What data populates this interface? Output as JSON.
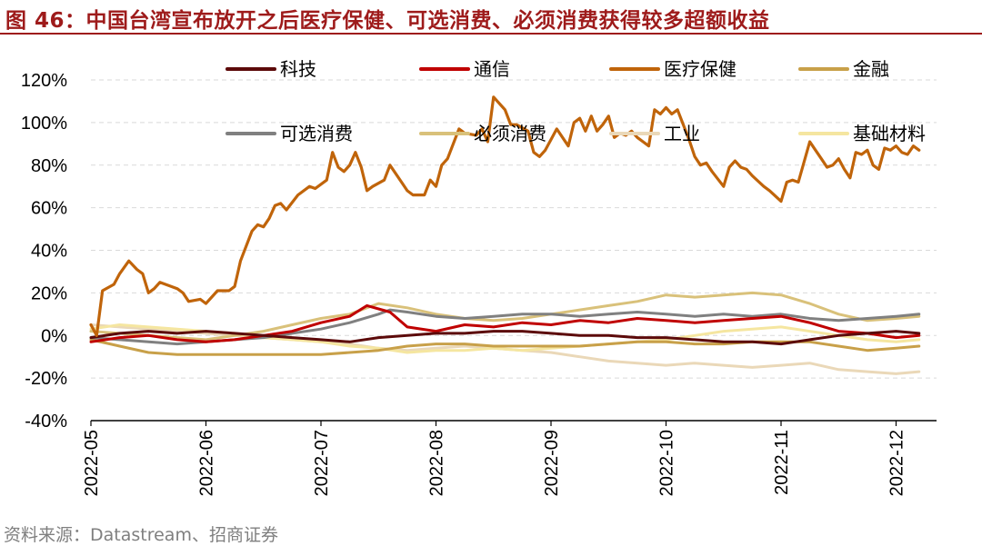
{
  "header": {
    "title": "图 46：中国台湾宣布放开之后医疗保健、可选消费、必须消费获得较多超额收益",
    "source": "资料来源：Datastream、招商证券"
  },
  "chart_data": {
    "type": "line",
    "title": "图 46：中国台湾宣布放开之后医疗保健、可选消费、必须消费获得较多超额收益",
    "xlabel": "",
    "ylabel": "",
    "ylim": [
      -40,
      120
    ],
    "yticks": [
      -40,
      -20,
      0,
      20,
      40,
      60,
      80,
      100,
      120
    ],
    "ytick_labels": [
      "-40%",
      "-20%",
      "0%",
      "20%",
      "40%",
      "60%",
      "80%",
      "100%",
      "120%"
    ],
    "xlim": [
      0,
      7.25
    ],
    "xticks": [
      0,
      1,
      2,
      3,
      4,
      5,
      6,
      7
    ],
    "xtick_labels": [
      "2022-05",
      "2022-06",
      "2022-07",
      "2022-08",
      "2022-09",
      "2022-10",
      "2022-11",
      "2022-12"
    ],
    "grid": "horizontal dashed",
    "legend": "top",
    "series": [
      {
        "name": "科技",
        "color": "#5c0a0a",
        "x": [
          0,
          0.25,
          0.5,
          0.75,
          1.0,
          1.25,
          1.5,
          1.75,
          2.0,
          2.25,
          2.5,
          2.75,
          3.0,
          3.25,
          3.5,
          3.75,
          4.0,
          4.25,
          4.5,
          4.75,
          5.0,
          5.25,
          5.5,
          5.75,
          6.0,
          6.25,
          6.5,
          6.75,
          7.0,
          7.2
        ],
        "values": [
          -1,
          1,
          2,
          1,
          2,
          1,
          0,
          -1,
          -2,
          -3,
          -1,
          0,
          1,
          1,
          2,
          2,
          1,
          0,
          0,
          -1,
          -1,
          -2,
          -3,
          -3,
          -4,
          -2,
          0,
          1,
          2,
          1
        ]
      },
      {
        "name": "通信",
        "color": "#c00000",
        "x": [
          0,
          0.25,
          0.5,
          0.75,
          1.0,
          1.25,
          1.5,
          1.75,
          2.0,
          2.25,
          2.4,
          2.6,
          2.75,
          3.0,
          3.25,
          3.5,
          3.75,
          4.0,
          4.25,
          4.5,
          4.75,
          5.0,
          5.25,
          5.5,
          5.75,
          6.0,
          6.25,
          6.5,
          6.75,
          7.0,
          7.2
        ],
        "values": [
          -3,
          -1,
          0,
          -2,
          -3,
          -2,
          0,
          2,
          6,
          9,
          14,
          11,
          4,
          2,
          5,
          4,
          6,
          5,
          7,
          6,
          8,
          7,
          6,
          7,
          8,
          9,
          6,
          2,
          1,
          -1,
          0
        ]
      },
      {
        "name": "医疗保健",
        "color": "#c0640a",
        "x": [
          0,
          0.05,
          0.1,
          0.2,
          0.25,
          0.33,
          0.4,
          0.45,
          0.5,
          0.55,
          0.6,
          0.75,
          0.8,
          0.85,
          0.95,
          1.0,
          1.1,
          1.2,
          1.25,
          1.3,
          1.4,
          1.45,
          1.5,
          1.55,
          1.6,
          1.65,
          1.7,
          1.8,
          1.9,
          1.95,
          2.05,
          2.1,
          2.15,
          2.2,
          2.25,
          2.3,
          2.35,
          2.4,
          2.45,
          2.55,
          2.6,
          2.7,
          2.75,
          2.8,
          2.9,
          2.95,
          3.0,
          3.05,
          3.1,
          3.15,
          3.2,
          3.25,
          3.35,
          3.4,
          3.45,
          3.5,
          3.55,
          3.6,
          3.65,
          3.7,
          3.8,
          3.85,
          3.9,
          3.95,
          4.0,
          4.05,
          4.15,
          4.2,
          4.25,
          4.3,
          4.35,
          4.4,
          4.45,
          4.5,
          4.55,
          4.6,
          4.65,
          4.7,
          4.75,
          4.8,
          4.85,
          4.9,
          4.95,
          5.0,
          5.05,
          5.1,
          5.2,
          5.25,
          5.3,
          5.35,
          5.4,
          5.5,
          5.55,
          5.6,
          5.65,
          5.7,
          5.75,
          5.85,
          5.9,
          6.0,
          6.05,
          6.1,
          6.15,
          6.25,
          6.3,
          6.35,
          6.4,
          6.45,
          6.5,
          6.55,
          6.6,
          6.65,
          6.7,
          6.75,
          6.8,
          6.85,
          6.9,
          6.95,
          7.0,
          7.05,
          7.1,
          7.15,
          7.2
        ],
        "values": [
          5,
          0,
          21,
          24,
          29,
          35,
          31,
          29,
          20,
          22,
          25,
          22,
          20,
          16,
          17,
          15,
          21,
          21,
          23,
          35,
          49,
          52,
          51,
          55,
          61,
          62,
          59,
          66,
          70,
          69,
          73,
          86,
          79,
          77,
          80,
          86,
          79,
          68,
          70,
          73,
          80,
          72,
          68,
          66,
          66,
          73,
          70,
          80,
          83,
          90,
          97,
          95,
          94,
          97,
          91,
          112,
          109,
          106,
          99,
          99,
          96,
          86,
          84,
          87,
          92,
          97,
          89,
          100,
          102,
          96,
          103,
          96,
          99,
          103,
          93,
          95,
          94,
          96,
          93,
          91,
          89,
          106,
          104,
          107,
          104,
          106,
          92,
          84,
          80,
          81,
          77,
          70,
          79,
          82,
          79,
          78,
          75,
          70,
          68,
          63,
          72,
          73,
          72,
          91,
          87,
          83,
          79,
          80,
          83,
          78,
          74,
          86,
          85,
          87,
          80,
          78,
          88,
          87,
          89,
          86,
          85,
          89,
          87
        ]
      },
      {
        "name": "金融",
        "color": "#c8a049",
        "x": [
          0,
          0.25,
          0.5,
          0.75,
          1.0,
          1.25,
          1.5,
          1.75,
          2.0,
          2.25,
          2.5,
          2.75,
          3.0,
          3.25,
          3.5,
          3.75,
          4.0,
          4.25,
          4.5,
          4.75,
          5.0,
          5.25,
          5.5,
          5.75,
          6.0,
          6.25,
          6.5,
          6.75,
          7.0,
          7.2
        ],
        "values": [
          -2,
          -5,
          -8,
          -9,
          -9,
          -9,
          -9,
          -9,
          -9,
          -8,
          -7,
          -5,
          -4,
          -4,
          -5,
          -5,
          -5,
          -5,
          -4,
          -3,
          -3,
          -4,
          -4,
          -3,
          -3,
          -3,
          -5,
          -7,
          -6,
          -5
        ]
      },
      {
        "name": "可选消费",
        "color": "#808080",
        "x": [
          0,
          0.25,
          0.5,
          0.75,
          1.0,
          1.25,
          1.5,
          1.75,
          2.0,
          2.25,
          2.5,
          2.6,
          2.75,
          3.0,
          3.25,
          3.5,
          3.75,
          4.0,
          4.25,
          4.5,
          4.75,
          5.0,
          5.25,
          5.5,
          5.75,
          6.0,
          6.25,
          6.5,
          6.75,
          7.0,
          7.2
        ],
        "values": [
          -1,
          -2,
          -3,
          -4,
          -3,
          -2,
          -1,
          1,
          3,
          6,
          10,
          12,
          11,
          9,
          8,
          9,
          10,
          10,
          9,
          10,
          11,
          10,
          9,
          10,
          9,
          10,
          8,
          7,
          8,
          9,
          10
        ]
      },
      {
        "name": "必须消费",
        "color": "#d9c17a",
        "x": [
          0,
          0.25,
          0.5,
          0.75,
          1.0,
          1.25,
          1.5,
          1.75,
          2.0,
          2.25,
          2.5,
          2.75,
          3.0,
          3.25,
          3.5,
          3.75,
          4.0,
          4.25,
          4.5,
          4.75,
          5.0,
          5.25,
          5.5,
          5.75,
          6.0,
          6.25,
          6.5,
          6.75,
          7.0,
          7.2
        ],
        "values": [
          2,
          1,
          0,
          -1,
          -2,
          0,
          2,
          5,
          8,
          10,
          15,
          13,
          10,
          8,
          7,
          8,
          10,
          12,
          14,
          16,
          19,
          18,
          19,
          20,
          19,
          15,
          10,
          7,
          8,
          9
        ]
      },
      {
        "name": "工业",
        "color": "#ead8b8",
        "x": [
          0,
          0.25,
          0.5,
          0.75,
          1.0,
          1.25,
          1.5,
          1.75,
          2.0,
          2.25,
          2.5,
          2.75,
          3.0,
          3.25,
          3.5,
          3.75,
          4.0,
          4.25,
          4.5,
          4.75,
          5.0,
          5.25,
          5.5,
          5.75,
          6.0,
          6.25,
          6.5,
          6.75,
          7.0,
          7.2
        ],
        "values": [
          5,
          4,
          3,
          2,
          1,
          0,
          -1,
          -2,
          -3,
          -4,
          -6,
          -7,
          -6,
          -5,
          -6,
          -7,
          -8,
          -10,
          -12,
          -13,
          -14,
          -13,
          -14,
          -15,
          -14,
          -13,
          -16,
          -17,
          -18,
          -17
        ]
      },
      {
        "name": "基础材料",
        "color": "#f5e6a0",
        "x": [
          0,
          0.25,
          0.5,
          0.75,
          1.0,
          1.25,
          1.5,
          1.75,
          2.0,
          2.25,
          2.5,
          2.75,
          3.0,
          3.25,
          3.5,
          3.75,
          4.0,
          4.25,
          4.5,
          4.75,
          5.0,
          5.25,
          5.5,
          5.75,
          6.0,
          6.25,
          6.5,
          6.75,
          7.0,
          7.2
        ],
        "values": [
          3,
          5,
          4,
          3,
          2,
          1,
          -1,
          -2,
          -3,
          -5,
          -6,
          -8,
          -7,
          -7,
          -6,
          -7,
          -6,
          -5,
          -4,
          -3,
          -2,
          0,
          2,
          3,
          4,
          2,
          0,
          -2,
          -3,
          -2
        ]
      }
    ]
  }
}
